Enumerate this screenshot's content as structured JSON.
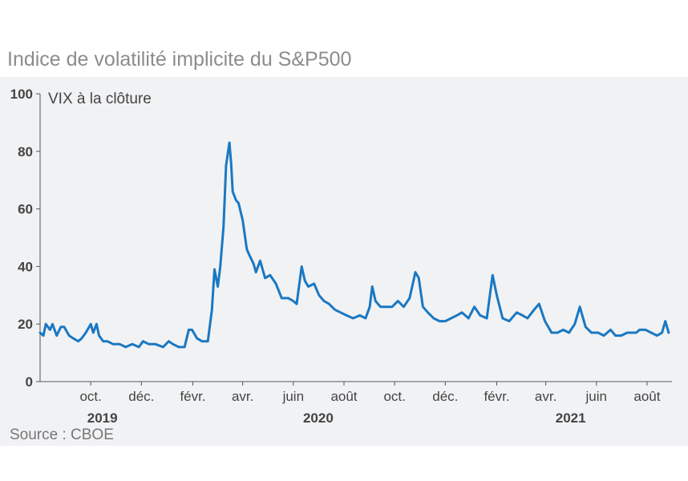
{
  "title": "Indice de volatilité implicite du S&P500",
  "source": "Source : CBOE",
  "colors": {
    "line": "#1a78c2",
    "background": "#f1f2f4",
    "axis": "#555555",
    "title": "#8c8c8c"
  },
  "chart_data": {
    "type": "line",
    "title": "Indice de volatilité implicite du S&P500",
    "ylabel": "VIX à la clôture",
    "xlabel": "",
    "ylim": [
      0,
      100
    ],
    "xlim": [
      "2019-08-01",
      "2021-08-31"
    ],
    "yticks": [
      "0",
      "20",
      "40",
      "60",
      "80",
      "100"
    ],
    "grid": false,
    "xticks": [
      {
        "label": "oct.",
        "date": "2019-10-01"
      },
      {
        "label": "déc.",
        "date": "2019-12-01"
      },
      {
        "label": "févr.",
        "date": "2020-02-01"
      },
      {
        "label": "avr.",
        "date": "2020-04-01"
      },
      {
        "label": "juin",
        "date": "2020-06-01"
      },
      {
        "label": "août",
        "date": "2020-08-01"
      },
      {
        "label": "oct.",
        "date": "2020-10-01"
      },
      {
        "label": "déc.",
        "date": "2020-12-01"
      },
      {
        "label": "févr.",
        "date": "2021-02-01"
      },
      {
        "label": "avr.",
        "date": "2021-04-01"
      },
      {
        "label": "juin",
        "date": "2021-06-01"
      },
      {
        "label": "août",
        "date": "2021-08-01"
      }
    ],
    "years": [
      {
        "label": "2019",
        "date": "2019-10-15"
      },
      {
        "label": "2020",
        "date": "2020-07-01"
      },
      {
        "label": "2021",
        "date": "2021-05-01"
      }
    ],
    "series": [
      {
        "x": [
          "2019-08-01",
          "2019-08-05",
          "2019-08-08",
          "2019-08-13",
          "2019-08-16",
          "2019-08-21",
          "2019-08-26",
          "2019-08-30",
          "2019-09-05",
          "2019-09-10",
          "2019-09-16",
          "2019-09-20",
          "2019-09-25",
          "2019-10-01",
          "2019-10-04",
          "2019-10-08",
          "2019-10-11",
          "2019-10-16",
          "2019-10-21",
          "2019-10-28",
          "2019-11-05",
          "2019-11-12",
          "2019-11-20",
          "2019-11-28",
          "2019-12-03",
          "2019-12-10",
          "2019-12-18",
          "2019-12-27",
          "2020-01-03",
          "2020-01-08",
          "2020-01-15",
          "2020-01-22",
          "2020-01-27",
          "2020-01-31",
          "2020-02-06",
          "2020-02-12",
          "2020-02-19",
          "2020-02-24",
          "2020-02-27",
          "2020-03-02",
          "2020-03-05",
          "2020-03-09",
          "2020-03-12",
          "2020-03-16",
          "2020-03-18",
          "2020-03-20",
          "2020-03-24",
          "2020-03-27",
          "2020-04-01",
          "2020-04-06",
          "2020-04-09",
          "2020-04-14",
          "2020-04-17",
          "2020-04-22",
          "2020-04-28",
          "2020-05-04",
          "2020-05-11",
          "2020-05-18",
          "2020-05-26",
          "2020-06-01",
          "2020-06-05",
          "2020-06-11",
          "2020-06-15",
          "2020-06-19",
          "2020-06-26",
          "2020-07-02",
          "2020-07-08",
          "2020-07-14",
          "2020-07-21",
          "2020-07-28",
          "2020-08-04",
          "2020-08-12",
          "2020-08-20",
          "2020-08-27",
          "2020-09-01",
          "2020-09-04",
          "2020-09-08",
          "2020-09-14",
          "2020-09-21",
          "2020-09-28",
          "2020-10-05",
          "2020-10-12",
          "2020-10-19",
          "2020-10-26",
          "2020-10-30",
          "2020-11-04",
          "2020-11-10",
          "2020-11-17",
          "2020-11-24",
          "2020-12-01",
          "2020-12-08",
          "2020-12-15",
          "2020-12-21",
          "2020-12-29",
          "2021-01-05",
          "2021-01-12",
          "2021-01-20",
          "2021-01-27",
          "2021-02-01",
          "2021-02-08",
          "2021-02-16",
          "2021-02-25",
          "2021-03-04",
          "2021-03-10",
          "2021-03-18",
          "2021-03-24",
          "2021-03-31",
          "2021-04-08",
          "2021-04-15",
          "2021-04-22",
          "2021-04-29",
          "2021-05-06",
          "2021-05-12",
          "2021-05-19",
          "2021-05-26",
          "2021-06-03",
          "2021-06-10",
          "2021-06-18",
          "2021-06-24",
          "2021-07-01",
          "2021-07-08",
          "2021-07-13",
          "2021-07-19",
          "2021-07-23",
          "2021-07-30",
          "2021-08-06",
          "2021-08-13",
          "2021-08-19",
          "2021-08-23",
          "2021-08-27"
        ],
        "y": [
          17,
          16,
          20,
          18,
          20,
          16,
          19,
          19,
          16,
          15,
          14,
          15,
          17,
          20,
          17,
          20,
          16,
          14,
          14,
          13,
          13,
          12,
          13,
          12,
          14,
          13,
          13,
          12,
          14,
          13,
          12,
          12,
          18,
          18,
          15,
          14,
          14,
          25,
          39,
          33,
          40,
          54,
          75,
          83,
          76,
          66,
          63,
          62,
          56,
          46,
          44,
          41,
          38,
          42,
          36,
          37,
          34,
          29,
          29,
          28,
          27,
          40,
          35,
          33,
          34,
          30,
          28,
          27,
          25,
          24,
          23,
          22,
          23,
          22,
          26,
          33,
          28,
          26,
          26,
          26,
          28,
          26,
          29,
          38,
          36,
          26,
          24,
          22,
          21,
          21,
          22,
          23,
          24,
          22,
          26,
          23,
          22,
          37,
          30,
          22,
          21,
          24,
          23,
          22,
          25,
          27,
          21,
          17,
          17,
          18,
          17,
          20,
          26,
          19,
          17,
          17,
          16,
          18,
          16,
          16,
          17,
          17,
          17,
          18,
          18,
          17,
          16,
          17,
          21,
          17
        ]
      }
    ]
  }
}
